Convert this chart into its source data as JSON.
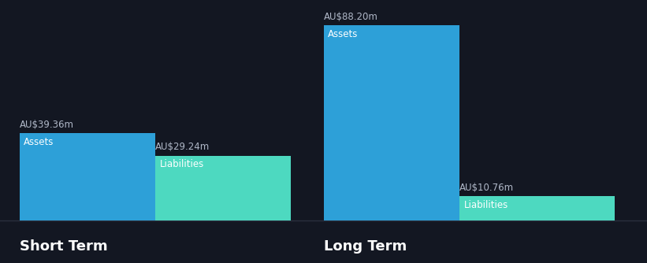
{
  "background_color": "#131722",
  "short_term": {
    "assets_value": 39.36,
    "liabilities_value": 29.24,
    "assets_label": "AU$39.36m",
    "liabilities_label": "AU$29.24m",
    "assets_color": "#2da0d8",
    "liabilities_color": "#4dd9c0",
    "label": "Short Term"
  },
  "long_term": {
    "assets_value": 88.2,
    "liabilities_value": 10.76,
    "assets_label": "AU$88.20m",
    "liabilities_label": "AU$10.76m",
    "assets_color": "#2da0d8",
    "liabilities_color": "#4dd9c0",
    "label": "Long Term"
  },
  "max_value": 88.2,
  "bar_inner_label_assets": "Assets",
  "bar_inner_label_liabilities": "Liabilities",
  "text_color": "#ffffff",
  "label_color": "#b0b8c8",
  "baseline_color": "#2a2f3e",
  "section_label_fontsize": 13,
  "value_label_fontsize": 8.5,
  "inner_label_fontsize": 8.5
}
